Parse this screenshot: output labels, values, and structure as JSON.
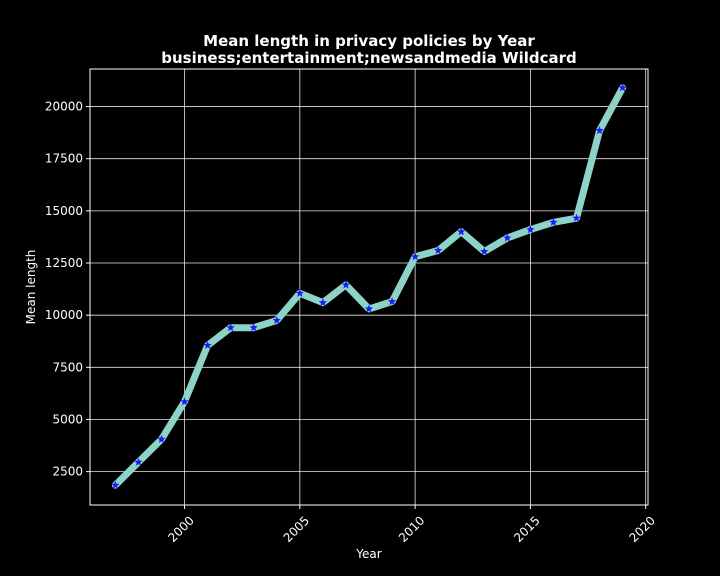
{
  "chart_data": {
    "type": "line",
    "title": "Mean length in privacy policies by Year",
    "subtitle": "business;entertainment;newsandmedia Wildcard",
    "xlabel": "Year",
    "ylabel": "Mean length",
    "x": [
      1997,
      1998,
      1999,
      2000,
      2001,
      2002,
      2003,
      2004,
      2005,
      2006,
      2007,
      2008,
      2009,
      2010,
      2011,
      2012,
      2013,
      2014,
      2015,
      2016,
      2017,
      2018,
      2019
    ],
    "series": [
      {
        "values": [
          1850,
          2950,
          4050,
          5850,
          8550,
          9400,
          9400,
          9750,
          11050,
          10600,
          11450,
          10300,
          10650,
          12800,
          13100,
          14000,
          13050,
          13700,
          14100,
          14450,
          14650,
          18850,
          20900
        ]
      }
    ],
    "xlim": [
      1995.9,
      2020.1
    ],
    "ylim": [
      900,
      21800
    ],
    "xticks": [
      2000,
      2005,
      2010,
      2015,
      2020
    ],
    "yticks": [
      2500,
      5000,
      7500,
      10000,
      12500,
      15000,
      17500,
      20000
    ],
    "grid": true,
    "colors": {
      "line": "#8dd3c7",
      "marker": "#1a1aff",
      "background": "#000000",
      "text": "#ffffff"
    },
    "marker": "star"
  }
}
